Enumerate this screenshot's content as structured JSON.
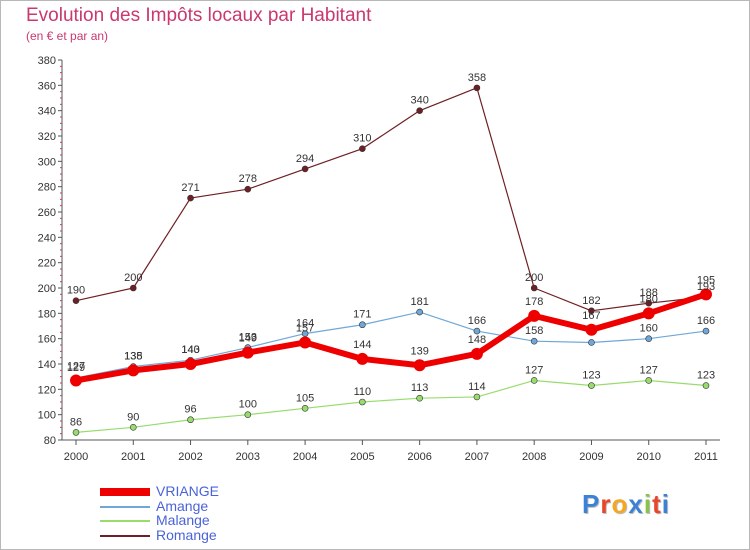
{
  "chart_data": {
    "type": "line",
    "title": "Evolution des Impôts locaux par Habitant",
    "subtitle": "(en € et par an)",
    "xlabel": "",
    "ylabel": "",
    "categories": [
      "2000",
      "2001",
      "2002",
      "2003",
      "2004",
      "2005",
      "2006",
      "2007",
      "2008",
      "2009",
      "2010",
      "2011"
    ],
    "ylim": [
      80,
      380
    ],
    "yticks": [
      80,
      100,
      120,
      140,
      160,
      180,
      200,
      220,
      240,
      260,
      280,
      300,
      320,
      340,
      360,
      380
    ],
    "grid": false,
    "legend_position": "bottom-left",
    "series": [
      {
        "name": "Romange",
        "color": "#6e1f24",
        "values": [
          190,
          200,
          271,
          278,
          294,
          310,
          340,
          358,
          200,
          182,
          188,
          193
        ]
      },
      {
        "name": "Malange",
        "color": "#99dc6e",
        "values": [
          86,
          90,
          96,
          100,
          105,
          110,
          113,
          114,
          127,
          123,
          127,
          123
        ]
      },
      {
        "name": "Amange",
        "color": "#6fa8d8",
        "values": [
          129,
          138,
          143,
          153,
          164,
          171,
          181,
          166,
          158,
          157,
          160,
          166
        ]
      },
      {
        "name": "VRIANGE",
        "color": "#ee0000",
        "values": [
          127,
          135,
          140,
          149,
          157,
          144,
          139,
          148,
          178,
          167,
          180,
          195
        ]
      }
    ],
    "data_labels": [
      {
        "series": "Romange",
        "labels": [
          "190",
          "200",
          "271",
          "278",
          "294",
          "310",
          "340",
          "358",
          "200",
          "182",
          "188",
          "193"
        ]
      },
      {
        "series": "Malange",
        "labels": [
          "86",
          "90",
          "96",
          "100",
          "105",
          "110",
          "113",
          "114",
          "127",
          "123",
          "127",
          "123"
        ]
      },
      {
        "series": "Amange",
        "labels": [
          "129",
          "138",
          "143",
          "153",
          "164",
          "171",
          "181",
          "166",
          "158",
          "",
          "160",
          "166"
        ]
      },
      {
        "series": "VRIANGE",
        "labels": [
          "127",
          "135",
          "140",
          "149",
          "157",
          "144",
          "139",
          "148",
          "178",
          "167",
          "180",
          "195"
        ]
      }
    ]
  },
  "legend": {
    "items": [
      {
        "label": "VRIANGE",
        "color": "#ee0000"
      },
      {
        "label": "Amange",
        "color": "#6fa8d8"
      },
      {
        "label": "Malange",
        "color": "#99dc6e"
      },
      {
        "label": "Romange",
        "color": "#6e1f24"
      }
    ]
  },
  "logo": {
    "letters": [
      "P",
      "r",
      "o",
      "x",
      "i",
      "t",
      "i"
    ],
    "colors": [
      "#3b82d6",
      "#e8462b",
      "#f5a623",
      "#3b82d6",
      "#8bc34a",
      "#e8462b",
      "#3b82d6"
    ]
  }
}
